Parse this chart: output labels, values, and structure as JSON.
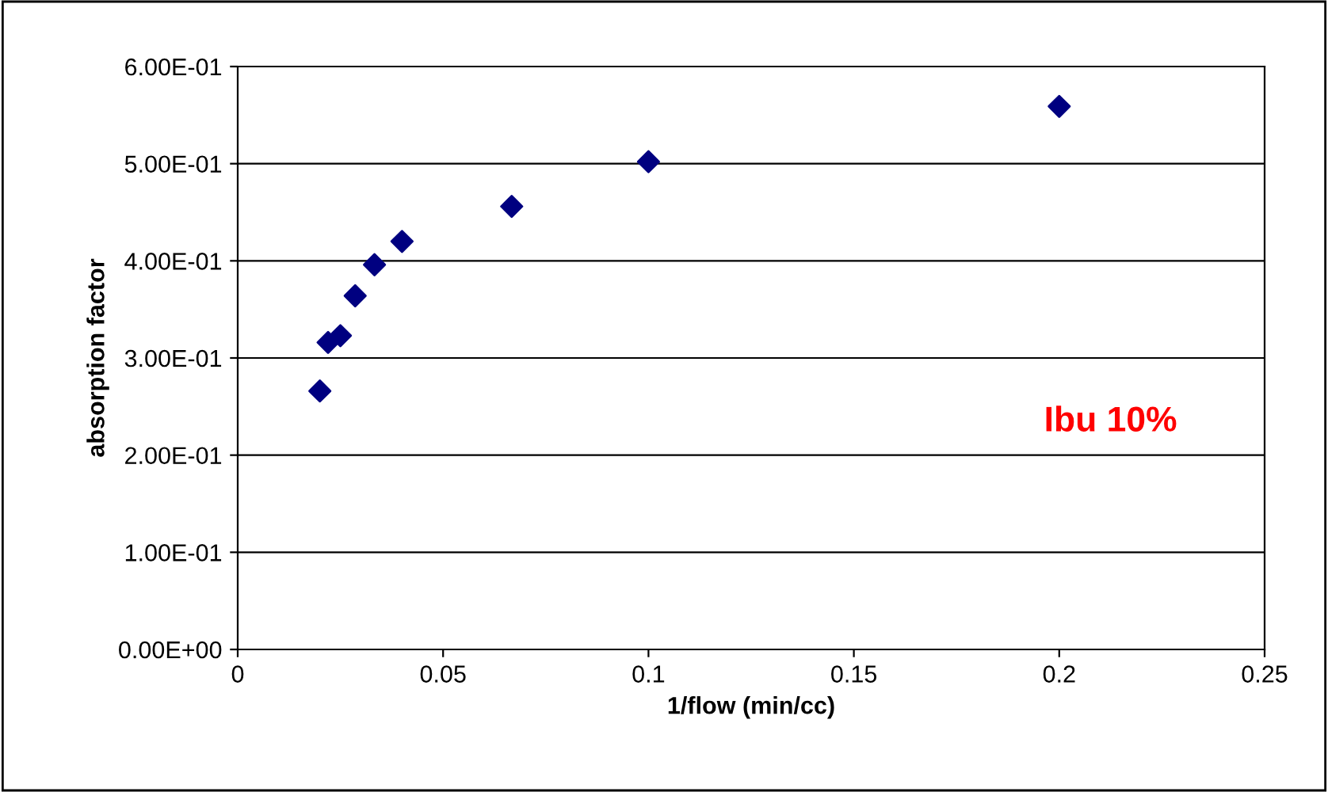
{
  "chart_data": {
    "type": "scatter",
    "xlabel": "1/flow (min/cc)",
    "ylabel": "absorption factor",
    "x": [
      0.02,
      0.022,
      0.025,
      0.0286,
      0.0333,
      0.04,
      0.0667,
      0.1,
      0.2
    ],
    "series": [
      {
        "color": "#000080",
        "values": [
          0.266,
          0.316,
          0.323,
          0.364,
          0.396,
          0.42,
          0.456,
          0.502,
          0.559
        ]
      }
    ],
    "marker": "diamond",
    "grid": "y",
    "legend": false,
    "xlim": [
      0,
      0.25
    ],
    "xticks": [
      0,
      0.05,
      0.1,
      0.15,
      0.2,
      0.25
    ],
    "ylim": [
      0,
      0.6
    ],
    "yticks": [
      {
        "value": 0,
        "label": "0.00E+00"
      },
      {
        "value": 0.1,
        "label": "1.00E-01"
      },
      {
        "value": 0.2,
        "label": "2.00E-01"
      },
      {
        "value": 0.3,
        "label": "3.00E-01"
      },
      {
        "value": 0.4,
        "label": "4.00E-01"
      },
      {
        "value": 0.5,
        "label": "5.00E-01"
      },
      {
        "value": 0.6,
        "label": "6.00E-01"
      }
    ],
    "annotations": [
      "Ibu 10%"
    ]
  }
}
